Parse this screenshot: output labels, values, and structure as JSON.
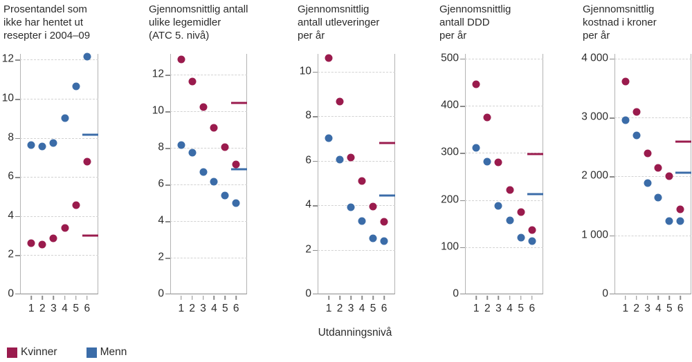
{
  "xlabel": "Utdanningsnivå",
  "legend": {
    "position": "bottom-left",
    "items": [
      {
        "label": "Kvinner",
        "color": "#9A1B4D"
      },
      {
        "label": "Menn",
        "color": "#3B6CA8"
      }
    ]
  },
  "chart_data": [
    {
      "type": "scatter",
      "title": "Prosentandel som\nikke har hentet ut\nresepter i 2004–09",
      "categories": [
        "1",
        "2",
        "3",
        "4",
        "5",
        "6"
      ],
      "ylim": [
        0,
        12.3
      ],
      "yticks": [
        {
          "value": 0,
          "label": "0"
        },
        {
          "value": 2,
          "label": "2"
        },
        {
          "value": 4,
          "label": "4"
        },
        {
          "value": 6,
          "label": "6"
        },
        {
          "value": 8,
          "label": "8"
        },
        {
          "value": 10,
          "label": "10"
        },
        {
          "value": 12,
          "label": "12"
        }
      ],
      "grid": "horizontal-dashed",
      "series": [
        {
          "name": "Kvinner",
          "values": [
            2.6,
            2.55,
            2.85,
            3.4,
            4.55,
            6.8
          ],
          "mean": 3.0
        },
        {
          "name": "Menn",
          "values": [
            7.65,
            7.55,
            7.75,
            9.0,
            10.65,
            12.15
          ],
          "mean": 8.15
        }
      ]
    },
    {
      "type": "scatter",
      "title": "Gjennomsnittlig antall\nulike legemidler\n(ATC 5. nivå)",
      "categories": [
        "1",
        "2",
        "3",
        "4",
        "5",
        "6"
      ],
      "ylim": [
        0,
        13.15
      ],
      "yticks": [
        {
          "value": 0,
          "label": "0"
        },
        {
          "value": 2,
          "label": "2"
        },
        {
          "value": 4,
          "label": "4"
        },
        {
          "value": 6,
          "label": "6"
        },
        {
          "value": 8,
          "label": "8"
        },
        {
          "value": 10,
          "label": "10"
        },
        {
          "value": 12,
          "label": "12"
        }
      ],
      "grid": "horizontal-dashed",
      "series": [
        {
          "name": "Kvinner",
          "values": [
            12.85,
            11.65,
            10.25,
            9.1,
            8.05,
            7.1
          ],
          "mean": 10.45
        },
        {
          "name": "Menn",
          "values": [
            8.15,
            7.75,
            6.7,
            6.15,
            5.4,
            5.0
          ],
          "mean": 6.85
        }
      ]
    },
    {
      "type": "scatter",
      "title": "Gjennomsnittlig\nantall utleveringer\nper år",
      "categories": [
        "1",
        "2",
        "3",
        "4",
        "5",
        "6"
      ],
      "ylim": [
        0,
        10.8
      ],
      "yticks": [
        {
          "value": 0,
          "label": "0"
        },
        {
          "value": 2,
          "label": "2"
        },
        {
          "value": 4,
          "label": "4"
        },
        {
          "value": 6,
          "label": "6"
        },
        {
          "value": 8,
          "label": "8"
        },
        {
          "value": 10,
          "label": "10"
        }
      ],
      "grid": "horizontal-dashed",
      "series": [
        {
          "name": "Kvinner",
          "values": [
            10.6,
            8.65,
            6.15,
            5.1,
            3.95,
            3.25
          ],
          "mean": 6.8
        },
        {
          "name": "Menn",
          "values": [
            7.0,
            6.05,
            3.9,
            3.3,
            2.5,
            2.4
          ],
          "mean": 4.45
        }
      ]
    },
    {
      "type": "scatter",
      "title": "Gjennomsnittlig\nantall DDD\nper år",
      "categories": [
        "1",
        "2",
        "3",
        "4",
        "5",
        "6"
      ],
      "ylim": [
        0,
        510
      ],
      "yticks": [
        {
          "value": 0,
          "label": "0"
        },
        {
          "value": 100,
          "label": "100"
        },
        {
          "value": 200,
          "label": "200"
        },
        {
          "value": 300,
          "label": "300"
        },
        {
          "value": 400,
          "label": "400"
        },
        {
          "value": 500,
          "label": "500"
        }
      ],
      "grid": "horizontal-dashed",
      "series": [
        {
          "name": "Kvinner",
          "values": [
            445,
            375,
            280,
            222,
            175,
            137
          ],
          "mean": 297
        },
        {
          "name": "Menn",
          "values": [
            310,
            282,
            188,
            157,
            120,
            113
          ],
          "mean": 212
        }
      ]
    },
    {
      "type": "scatter",
      "title": "Gjennomsnittlig\nkostnad i kroner\nper år",
      "categories": [
        "1",
        "2",
        "3",
        "4",
        "5",
        "6"
      ],
      "ylim": [
        0,
        4080
      ],
      "yticks": [
        {
          "value": 0,
          "label": "0"
        },
        {
          "value": 1000,
          "label": "1 000"
        },
        {
          "value": 2000,
          "label": "2 000"
        },
        {
          "value": 3000,
          "label": "3 000"
        },
        {
          "value": 4000,
          "label": "4 000"
        }
      ],
      "grid": "horizontal-dashed",
      "series": [
        {
          "name": "Kvinner",
          "values": [
            3610,
            3100,
            2390,
            2140,
            2010,
            1440
          ],
          "mean": 2590
        },
        {
          "name": "Menn",
          "values": [
            2960,
            2700,
            1890,
            1640,
            1240,
            1240
          ],
          "mean": 2060
        }
      ]
    }
  ]
}
